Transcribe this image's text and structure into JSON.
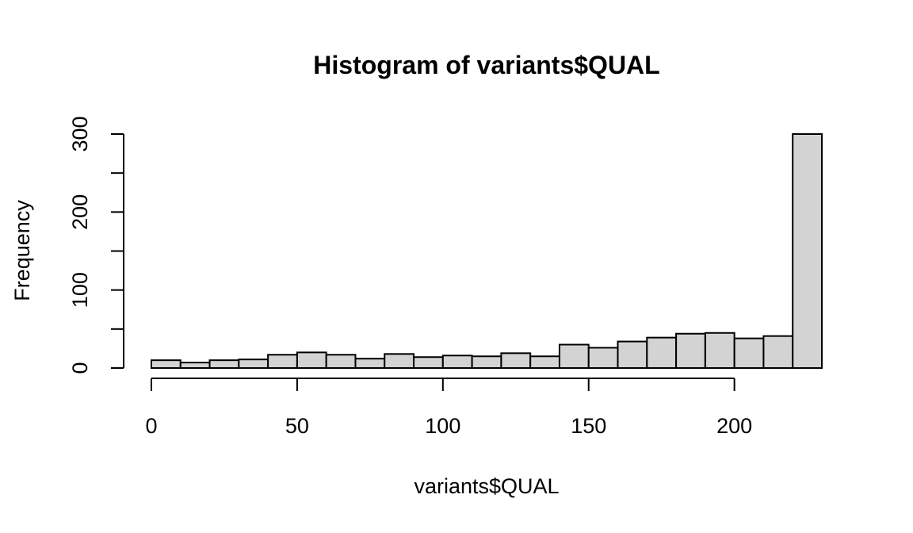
{
  "chart_data": {
    "type": "bar",
    "subtype": "histogram",
    "title": "Histogram of variants$QUAL",
    "xlabel": "variants$QUAL",
    "ylabel": "Frequency",
    "bin_edges": [
      0,
      10,
      20,
      30,
      40,
      50,
      60,
      70,
      80,
      90,
      100,
      110,
      120,
      130,
      140,
      150,
      160,
      170,
      180,
      190,
      200,
      210,
      220,
      230
    ],
    "values": [
      10,
      7,
      10,
      11,
      17,
      20,
      17,
      12,
      18,
      14,
      16,
      15,
      19,
      15,
      30,
      26,
      34,
      39,
      44,
      45,
      38,
      41,
      300
    ],
    "xlim": [
      0,
      230
    ],
    "ylim": [
      0,
      300
    ],
    "x_ticks": [
      0,
      50,
      100,
      150,
      200
    ],
    "x_tick_labels": [
      "0",
      "50",
      "100",
      "150",
      "200"
    ],
    "y_ticks": [
      0,
      50,
      100,
      150,
      200,
      250,
      300
    ],
    "y_tick_labels": [
      "0",
      "",
      "100",
      "",
      "200",
      "",
      "300"
    ],
    "bar_color": "#d3d3d3",
    "edge_color": "#000000",
    "grid": false,
    "legend": "none"
  }
}
